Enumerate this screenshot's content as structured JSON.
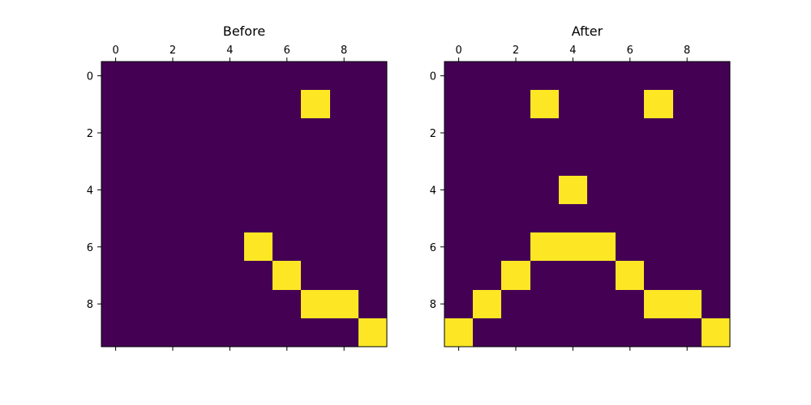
{
  "chart_data": [
    {
      "type": "heatmap",
      "title": "Before",
      "x_ticks": [
        0,
        2,
        4,
        6,
        8
      ],
      "y_ticks": [
        0,
        2,
        4,
        6,
        8
      ],
      "xlim": [
        -0.5,
        9.5
      ],
      "ylim": [
        9.5,
        -0.5
      ],
      "x_tick_position": "top",
      "grid": false,
      "colors": {
        "zero": "#440154",
        "one": "#fde725"
      },
      "values": [
        [
          0,
          0,
          0,
          0,
          0,
          0,
          0,
          0,
          0,
          0
        ],
        [
          0,
          0,
          0,
          0,
          0,
          0,
          0,
          1,
          0,
          0
        ],
        [
          0,
          0,
          0,
          0,
          0,
          0,
          0,
          0,
          0,
          0
        ],
        [
          0,
          0,
          0,
          0,
          0,
          0,
          0,
          0,
          0,
          0
        ],
        [
          0,
          0,
          0,
          0,
          0,
          0,
          0,
          0,
          0,
          0
        ],
        [
          0,
          0,
          0,
          0,
          0,
          0,
          0,
          0,
          0,
          0
        ],
        [
          0,
          0,
          0,
          0,
          0,
          1,
          0,
          0,
          0,
          0
        ],
        [
          0,
          0,
          0,
          0,
          0,
          0,
          1,
          0,
          0,
          0
        ],
        [
          0,
          0,
          0,
          0,
          0,
          0,
          0,
          1,
          1,
          0
        ],
        [
          0,
          0,
          0,
          0,
          0,
          0,
          0,
          0,
          0,
          1
        ]
      ]
    },
    {
      "type": "heatmap",
      "title": "After",
      "x_ticks": [
        0,
        2,
        4,
        6,
        8
      ],
      "y_ticks": [
        0,
        2,
        4,
        6,
        8
      ],
      "xlim": [
        -0.5,
        9.5
      ],
      "ylim": [
        9.5,
        -0.5
      ],
      "x_tick_position": "top",
      "grid": false,
      "colors": {
        "zero": "#440154",
        "one": "#fde725"
      },
      "values": [
        [
          0,
          0,
          0,
          0,
          0,
          0,
          0,
          0,
          0,
          0
        ],
        [
          0,
          0,
          0,
          1,
          0,
          0,
          0,
          1,
          0,
          0
        ],
        [
          0,
          0,
          0,
          0,
          0,
          0,
          0,
          0,
          0,
          0
        ],
        [
          0,
          0,
          0,
          0,
          0,
          0,
          0,
          0,
          0,
          0
        ],
        [
          0,
          0,
          0,
          0,
          1,
          0,
          0,
          0,
          0,
          0
        ],
        [
          0,
          0,
          0,
          0,
          0,
          0,
          0,
          0,
          0,
          0
        ],
        [
          0,
          0,
          0,
          1,
          1,
          1,
          0,
          0,
          0,
          0
        ],
        [
          0,
          0,
          1,
          0,
          0,
          0,
          1,
          0,
          0,
          0
        ],
        [
          0,
          1,
          0,
          0,
          0,
          0,
          0,
          1,
          1,
          0
        ],
        [
          1,
          0,
          0,
          0,
          0,
          0,
          0,
          0,
          0,
          1
        ]
      ]
    }
  ]
}
